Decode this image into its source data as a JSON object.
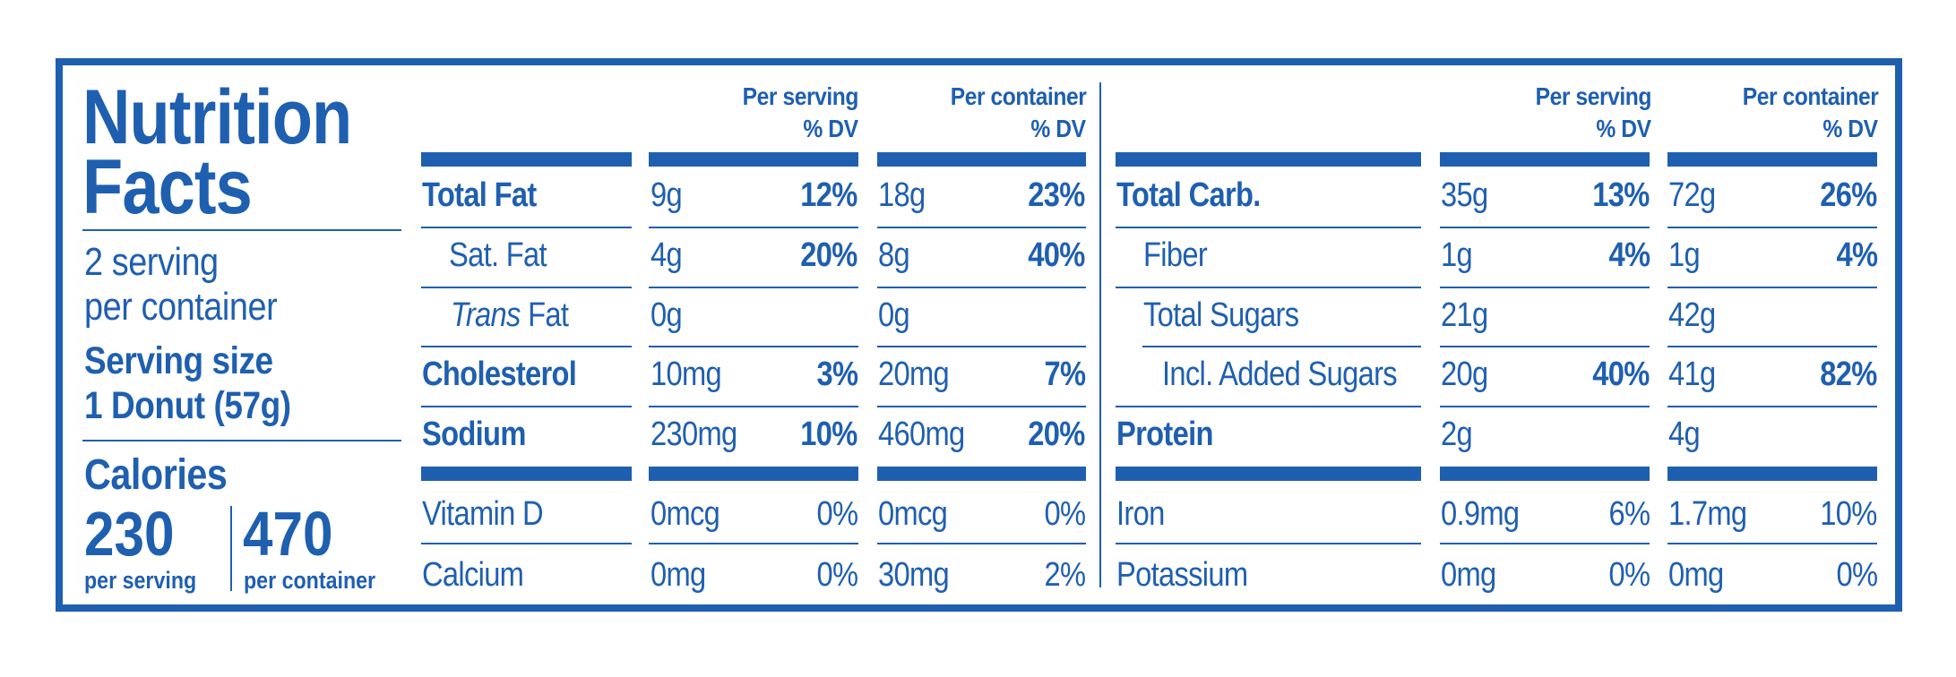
{
  "side": {
    "title_line1": "Nutrition",
    "title_line2": "Facts",
    "servings_line1": "2 serving",
    "servings_line2": "per container",
    "serving_size_line1": "Serving size",
    "serving_size_line2": "1 Donut (57g)",
    "calories_label": "Calories",
    "calories_serving": "230",
    "calories_serving_label": "per serving",
    "calories_container": "470",
    "calories_container_label": "per container"
  },
  "headers": {
    "per_serving_line1": "Per serving",
    "per_serving_line2": "% DV",
    "per_container_line1": "Per container",
    "per_container_line2": "% DV"
  },
  "left": {
    "rows": [
      {
        "name": "Total Fat",
        "s_amt": "9g",
        "s_dv": "12%",
        "c_amt": "18g",
        "c_dv": "23%"
      },
      {
        "name": "Sat. Fat",
        "s_amt": "4g",
        "s_dv": "20%",
        "c_amt": "8g",
        "c_dv": "40%"
      },
      {
        "name_italic": "Trans",
        "name_rest": " Fat",
        "s_amt": "0g",
        "s_dv": "",
        "c_amt": "0g",
        "c_dv": ""
      },
      {
        "name": "Cholesterol",
        "s_amt": "10mg",
        "s_dv": "3%",
        "c_amt": "20mg",
        "c_dv": "7%"
      },
      {
        "name": "Sodium",
        "s_amt": "230mg",
        "s_dv": "10%",
        "c_amt": "460mg",
        "c_dv": "20%"
      }
    ],
    "micros": [
      {
        "name": "Vitamin D",
        "s_amt": "0mcg",
        "s_dv": "0%",
        "c_amt": "0mcg",
        "c_dv": "0%"
      },
      {
        "name": "Calcium",
        "s_amt": "0mg",
        "s_dv": "0%",
        "c_amt": "30mg",
        "c_dv": "2%"
      }
    ]
  },
  "right": {
    "rows": [
      {
        "name": "Total Carb.",
        "s_amt": "35g",
        "s_dv": "13%",
        "c_amt": "72g",
        "c_dv": "26%"
      },
      {
        "name": "Fiber",
        "s_amt": "1g",
        "s_dv": "4%",
        "c_amt": "1g",
        "c_dv": "4%"
      },
      {
        "name": "Total Sugars",
        "s_amt": "21g",
        "s_dv": "",
        "c_amt": "42g",
        "c_dv": ""
      },
      {
        "name": "Incl. Added Sugars",
        "s_amt": "20g",
        "s_dv": "40%",
        "c_amt": "41g",
        "c_dv": "82%"
      },
      {
        "name": "Protein",
        "s_amt": "2g",
        "s_dv": "",
        "c_amt": "4g",
        "c_dv": ""
      }
    ],
    "micros": [
      {
        "name": "Iron",
        "s_amt": "0.9mg",
        "s_dv": "6%",
        "c_amt": "1.7mg",
        "c_dv": "10%"
      },
      {
        "name": "Potassium",
        "s_amt": "0mg",
        "s_dv": "0%",
        "c_amt": "0mg",
        "c_dv": "0%"
      }
    ]
  },
  "colors": {
    "label_blue": "#1f5fb0",
    "background": "#ffffff"
  }
}
